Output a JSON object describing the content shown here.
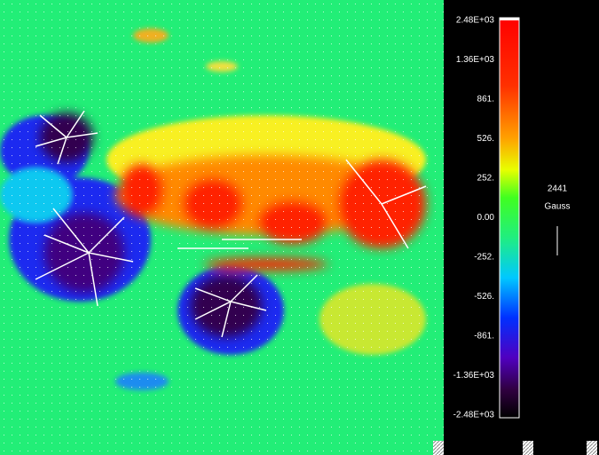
{
  "colorbar": {
    "ticks": [
      "2.48E+03",
      "1.36E+03",
      "861.",
      "526.",
      "252.",
      "0.00",
      "-252.",
      "-526.",
      "-861.",
      "-1.36E+03",
      "-2.48E+03"
    ]
  },
  "scale": {
    "value": "2441",
    "unit": "Gauss"
  }
}
